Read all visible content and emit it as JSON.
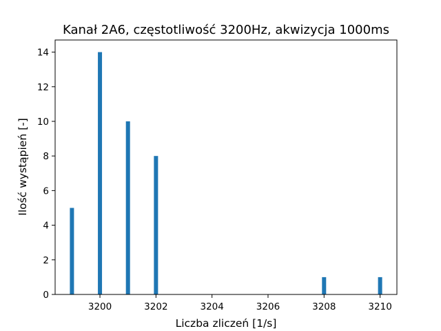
{
  "chart_data": {
    "type": "bar",
    "title": "Kanał 2A6, częstotliwość 3200Hz, akwizycja 1000ms",
    "xlabel": "Liczba zliczeń [1/s]",
    "ylabel": "Ilość wystąpień [-]",
    "x": [
      3199,
      3200,
      3201,
      3202,
      3208,
      3210
    ],
    "values": [
      5,
      14,
      10,
      8,
      1,
      1
    ],
    "xlim": [
      3198.4,
      3210.6
    ],
    "ylim": [
      0,
      14.7
    ],
    "xticks": [
      3200,
      3202,
      3204,
      3206,
      3208,
      3210
    ],
    "yticks": [
      0,
      2,
      4,
      6,
      8,
      10,
      12,
      14
    ],
    "bar_color": "#1f77b4",
    "grid": false,
    "legend": "none"
  }
}
